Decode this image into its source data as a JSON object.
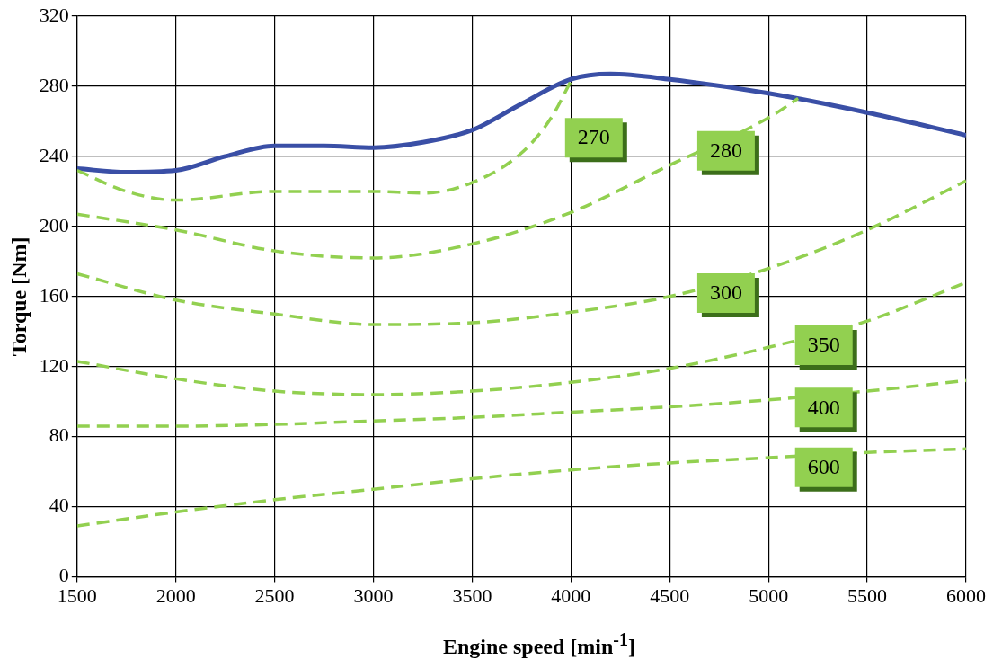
{
  "chart_data": {
    "type": "line",
    "xlabel": "Engine speed [min$^{-1}$]",
    "ylabel": "Torque [Nm]",
    "xlim": [
      1500,
      6000
    ],
    "xticks": [
      1500,
      2000,
      2500,
      3000,
      3500,
      4000,
      4500,
      5000,
      5500,
      6000
    ],
    "ylim": [
      0,
      320
    ],
    "yticks": [
      0,
      40,
      80,
      120,
      160,
      200,
      240,
      280,
      320
    ],
    "grid": true,
    "marker": "none",
    "series": [
      {
        "color": "#3a4fa6",
        "line_style": "solid",
        "x": [
          1500,
          1750,
          2000,
          2250,
          2500,
          2750,
          3000,
          3250,
          3500,
          3750,
          4000,
          4200,
          4500,
          5000,
          5500,
          6000
        ],
        "values": [
          233,
          231,
          232,
          240,
          246,
          246,
          245,
          248,
          255,
          270,
          284,
          287,
          284,
          276,
          265,
          252
        ]
      },
      {
        "name": "270",
        "color": "#92d050",
        "line_style": "dashed",
        "x": [
          1500,
          1750,
          2000,
          2500,
          3000,
          3250,
          3500,
          3750,
          3900,
          4000
        ],
        "values": [
          232,
          220,
          215,
          220,
          220,
          219,
          225,
          242,
          262,
          283
        ]
      },
      {
        "name": "280",
        "color": "#92d050",
        "line_style": "dashed",
        "x": [
          1500,
          2000,
          2500,
          3000,
          3500,
          4000,
          4500,
          5000,
          5150
        ],
        "values": [
          207,
          198,
          186,
          182,
          190,
          208,
          235,
          262,
          273
        ]
      },
      {
        "name": "300",
        "color": "#92d050",
        "line_style": "dashed",
        "x": [
          1500,
          2000,
          2500,
          3000,
          3500,
          4000,
          4500,
          5000,
          5500,
          6000
        ],
        "values": [
          173,
          158,
          150,
          144,
          145,
          151,
          160,
          176,
          198,
          226
        ]
      },
      {
        "name": "350",
        "color": "#92d050",
        "line_style": "dashed",
        "x": [
          1500,
          2000,
          2500,
          3000,
          3500,
          4000,
          4500,
          5000,
          5500,
          6000
        ],
        "values": [
          123,
          113,
          106,
          104,
          106,
          111,
          119,
          131,
          146,
          168
        ]
      },
      {
        "name": "400",
        "color": "#92d050",
        "line_style": "dashed",
        "x": [
          1500,
          2000,
          2500,
          3000,
          3500,
          4000,
          4500,
          5000,
          5500,
          6000
        ],
        "values": [
          86,
          86,
          87,
          89,
          91,
          94,
          97,
          101,
          106,
          112
        ]
      },
      {
        "name": "600",
        "color": "#92d050",
        "line_style": "dashed",
        "x": [
          1500,
          2000,
          2500,
          3000,
          3500,
          4000,
          4500,
          5000,
          5500,
          6000
        ],
        "values": [
          29,
          37,
          44,
          50,
          56,
          61,
          65,
          68,
          71,
          73
        ]
      }
    ]
  }
}
